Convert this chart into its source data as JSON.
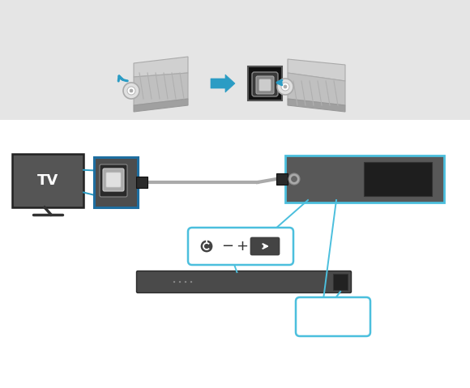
{
  "bg_top": "#e5e5e5",
  "bg_bottom": "#ffffff",
  "blue": "#2b9cc4",
  "blue_light": "#4bbfdd",
  "tv_screen": "#555555",
  "tv_border": "#333333",
  "tv_text": "TV",
  "connector_dark": "#3a3a3a",
  "connector_mid": "#555555",
  "connector_light": "#777777",
  "cable_gray": "#aaaaaa",
  "cable_dark": "#333333",
  "panel_dark": "#4a4a4a",
  "panel_mid": "#606060",
  "port_icon_bg": "#111111",
  "white": "#ffffff",
  "lgray": "#cccccc",
  "mgray": "#999999",
  "dgray": "#333333",
  "body_gray": "#b0b0b0",
  "body_shadow": "#888888"
}
